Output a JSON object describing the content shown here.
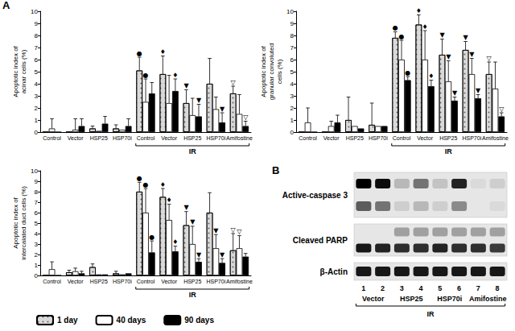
{
  "panel_a": {
    "label": "A"
  },
  "chart_data": [
    {
      "type": "bar",
      "y_label": "Apoptotic index of\nacinar cells (%)",
      "categories": [
        "Control",
        "Vector",
        "HSP25",
        "HSP70i",
        "Control",
        "Vector",
        "HSP25",
        "HSP70i",
        "Amifostine"
      ],
      "group": {
        "label": "IR",
        "start": 4,
        "end": 8
      },
      "ylim": [
        0,
        10
      ],
      "yticks": [
        0,
        1,
        2,
        3,
        4,
        5,
        6,
        7,
        8,
        9,
        10
      ],
      "grid": false,
      "legend": "lower left",
      "series": [
        {
          "name": "1 day",
          "color": "#d9d9d9",
          "marker": "dots",
          "values": [
            0,
            0,
            0.3,
            0.3,
            5.1,
            4.8,
            2.4,
            4.0,
            3.2
          ],
          "errors": [
            0,
            0,
            0.2,
            0.3,
            1.1,
            1.5,
            1.1,
            2.1,
            0.6
          ],
          "significance": [
            null,
            null,
            null,
            null,
            "●",
            "♦",
            "▼",
            null,
            "▽"
          ]
        },
        {
          "name": "40 days",
          "color": "#ffffff",
          "values": [
            0.3,
            0.2,
            0.1,
            0.2,
            2.5,
            2.4,
            1.4,
            1.9,
            1.5
          ],
          "errors": [
            0.8,
            0.9,
            0,
            0,
            1.9,
            2.3,
            1.4,
            1.0,
            1.6
          ],
          "significance": [
            null,
            null,
            null,
            null,
            "●",
            null,
            null,
            null,
            null
          ]
        },
        {
          "name": "90 days",
          "color": "#000000",
          "values": [
            0,
            0.5,
            0.7,
            0.5,
            3.2,
            3.4,
            1.3,
            0.8,
            0.5
          ],
          "errors": [
            0,
            0.6,
            0.6,
            0.6,
            0.9,
            1.0,
            1.0,
            0.8,
            0.4
          ],
          "significance": [
            null,
            null,
            null,
            null,
            null,
            "♦",
            "▼",
            "▼",
            "▽"
          ]
        }
      ]
    },
    {
      "type": "bar",
      "y_label": "Apoptotic index of\ngranular convoluted\ncells (%)",
      "categories": [
        "Control",
        "Vector",
        "HSP25",
        "HSP70i",
        "Control",
        "Vector",
        "HSP25",
        "HSP70i",
        "Amifostine"
      ],
      "group": {
        "label": "IR",
        "start": 4,
        "end": 8
      },
      "ylim": [
        0,
        10
      ],
      "yticks": [
        0,
        1,
        2,
        3,
        4,
        5,
        6,
        7,
        8,
        9,
        10
      ],
      "grid": false,
      "series": [
        {
          "name": "1 day",
          "color": "#d9d9d9",
          "marker": "dots",
          "values": [
            0,
            0,
            1.0,
            0.6,
            7.8,
            8.9,
            6.4,
            6.8,
            4.8
          ],
          "errors": [
            0,
            0,
            1.9,
            1.8,
            0.5,
            0.8,
            1.3,
            0.7,
            1.0
          ],
          "significance": [
            null,
            null,
            null,
            null,
            "●",
            "♦",
            "▼",
            "▼",
            "▽"
          ]
        },
        {
          "name": "40 days",
          "color": "#ffffff",
          "values": [
            0.8,
            0.5,
            0.5,
            0.5,
            6.0,
            6.0,
            4.2,
            4.8,
            3.6
          ],
          "errors": [
            1.2,
            0.4,
            0,
            0,
            1.6,
            2.4,
            1.7,
            1.3,
            2.2
          ],
          "significance": [
            null,
            null,
            null,
            null,
            "●",
            "♦",
            "▼",
            "▼",
            null
          ]
        },
        {
          "name": "90 days",
          "color": "#000000",
          "values": [
            0,
            0.8,
            0.3,
            0.5,
            4.3,
            3.8,
            2.6,
            2.8,
            1.3
          ],
          "errors": [
            0,
            0.6,
            0,
            0,
            0.3,
            0.5,
            0.3,
            0.3,
            0.3
          ],
          "significance": [
            null,
            null,
            null,
            null,
            "●",
            "♦",
            "▼",
            "▼",
            "▽"
          ]
        }
      ]
    },
    {
      "type": "bar",
      "y_label": "Apoptotic index of\nintercalated duct cells (%)",
      "categories": [
        "Control",
        "Vector",
        "HSP25",
        "HSP70i",
        "Control",
        "Vector",
        "HSP25",
        "HSP70i",
        "Amifostine"
      ],
      "group": {
        "label": "IR",
        "start": 4,
        "end": 8
      },
      "ylim": [
        0,
        10
      ],
      "yticks": [
        0,
        1,
        2,
        3,
        4,
        5,
        6,
        7,
        8,
        9,
        10
      ],
      "grid": false,
      "series": [
        {
          "name": "1 day",
          "color": "#d9d9d9",
          "marker": "dots",
          "values": [
            0,
            0.3,
            0.8,
            0.2,
            8.0,
            7.5,
            4.8,
            6.0,
            2.4
          ],
          "errors": [
            0,
            0.2,
            0.3,
            0.2,
            0.9,
            0.8,
            1.3,
            1.9,
            1.6
          ],
          "significance": [
            null,
            null,
            null,
            null,
            "●",
            "♦",
            "▼",
            null,
            "▽"
          ]
        },
        {
          "name": "40 days",
          "color": "#ffffff",
          "values": [
            0.6,
            0.4,
            0.1,
            0.1,
            6.0,
            5.3,
            3.0,
            2.6,
            2.6
          ],
          "errors": [
            0.7,
            0.3,
            0,
            0,
            2.3,
            1.5,
            1.7,
            1.3,
            1.2
          ],
          "significance": [
            null,
            null,
            null,
            null,
            "●",
            "♦",
            "▼",
            "▼",
            "▽"
          ]
        },
        {
          "name": "90 days",
          "color": "#000000",
          "values": [
            0,
            0.2,
            0.1,
            0.2,
            2.2,
            2.3,
            1.3,
            1.2,
            1.8
          ],
          "errors": [
            0,
            0.2,
            0,
            0,
            1.1,
            0.5,
            0.3,
            0.4,
            0.3
          ],
          "significance": [
            null,
            null,
            null,
            null,
            "●",
            "♦",
            "▼",
            "▼",
            null
          ]
        }
      ]
    }
  ],
  "blot": {
    "label": "B",
    "rows": [
      {
        "label": "Active-caspase 3",
        "bands": [
          [
            1.0,
            0.95,
            0.2,
            0.5,
            0.15,
            0.85,
            0.05,
            0.1
          ],
          [
            0.6,
            0.5,
            0.1,
            0.2,
            0.1,
            0.4,
            0,
            0.05
          ]
        ]
      },
      {
        "label": "Cleaved PARP",
        "bands": [
          [
            0,
            0,
            0.3,
            0.3,
            0.3,
            0.3,
            0.3,
            0.3
          ],
          [
            0.9,
            0.85,
            0.8,
            0.8,
            0.85,
            0.8,
            0.8,
            0.75
          ]
        ]
      },
      {
        "label": "β-Actin",
        "bands": [
          [
            0.9,
            0.9,
            0.9,
            0.9,
            0.9,
            0.9,
            0.9,
            0.9
          ]
        ]
      }
    ],
    "lanes": [
      "1",
      "2",
      "3",
      "4",
      "5",
      "6",
      "7",
      "8"
    ],
    "groups": [
      {
        "label": "Vector",
        "start": 0,
        "end": 1
      },
      {
        "label": "HSP25",
        "start": 2,
        "end": 3
      },
      {
        "label": "HSP70i",
        "start": 4,
        "end": 5
      },
      {
        "label": "Amifostine",
        "start": 6,
        "end": 7
      }
    ],
    "treatment": "IR"
  }
}
